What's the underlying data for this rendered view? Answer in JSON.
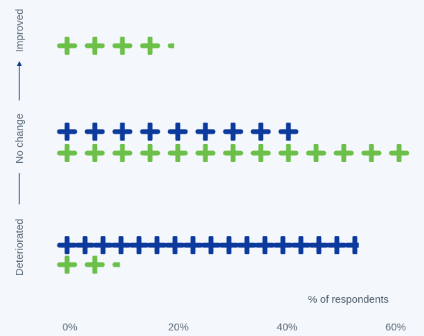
{
  "chart_data": {
    "type": "bar",
    "categories": [
      "Improved",
      "No change",
      "Deteriorated"
    ],
    "series": [
      {
        "values": [
          0,
          45,
          55
        ],
        "color": "#0b3a9c"
      },
      {
        "values": [
          21,
          65,
          11
        ],
        "color": "#6cc04a"
      }
    ],
    "xlabel": "% of respondents",
    "xticks": [
      "0%",
      "20%",
      "40%",
      "60%"
    ],
    "xtick_values": [
      0,
      20,
      40,
      60
    ],
    "xlim": [
      0,
      65
    ],
    "ylabel": [
      "Deteriorated",
      "No change",
      "Improved"
    ],
    "mark": "plus-sign pictogram",
    "grid": false,
    "legend": "none"
  }
}
